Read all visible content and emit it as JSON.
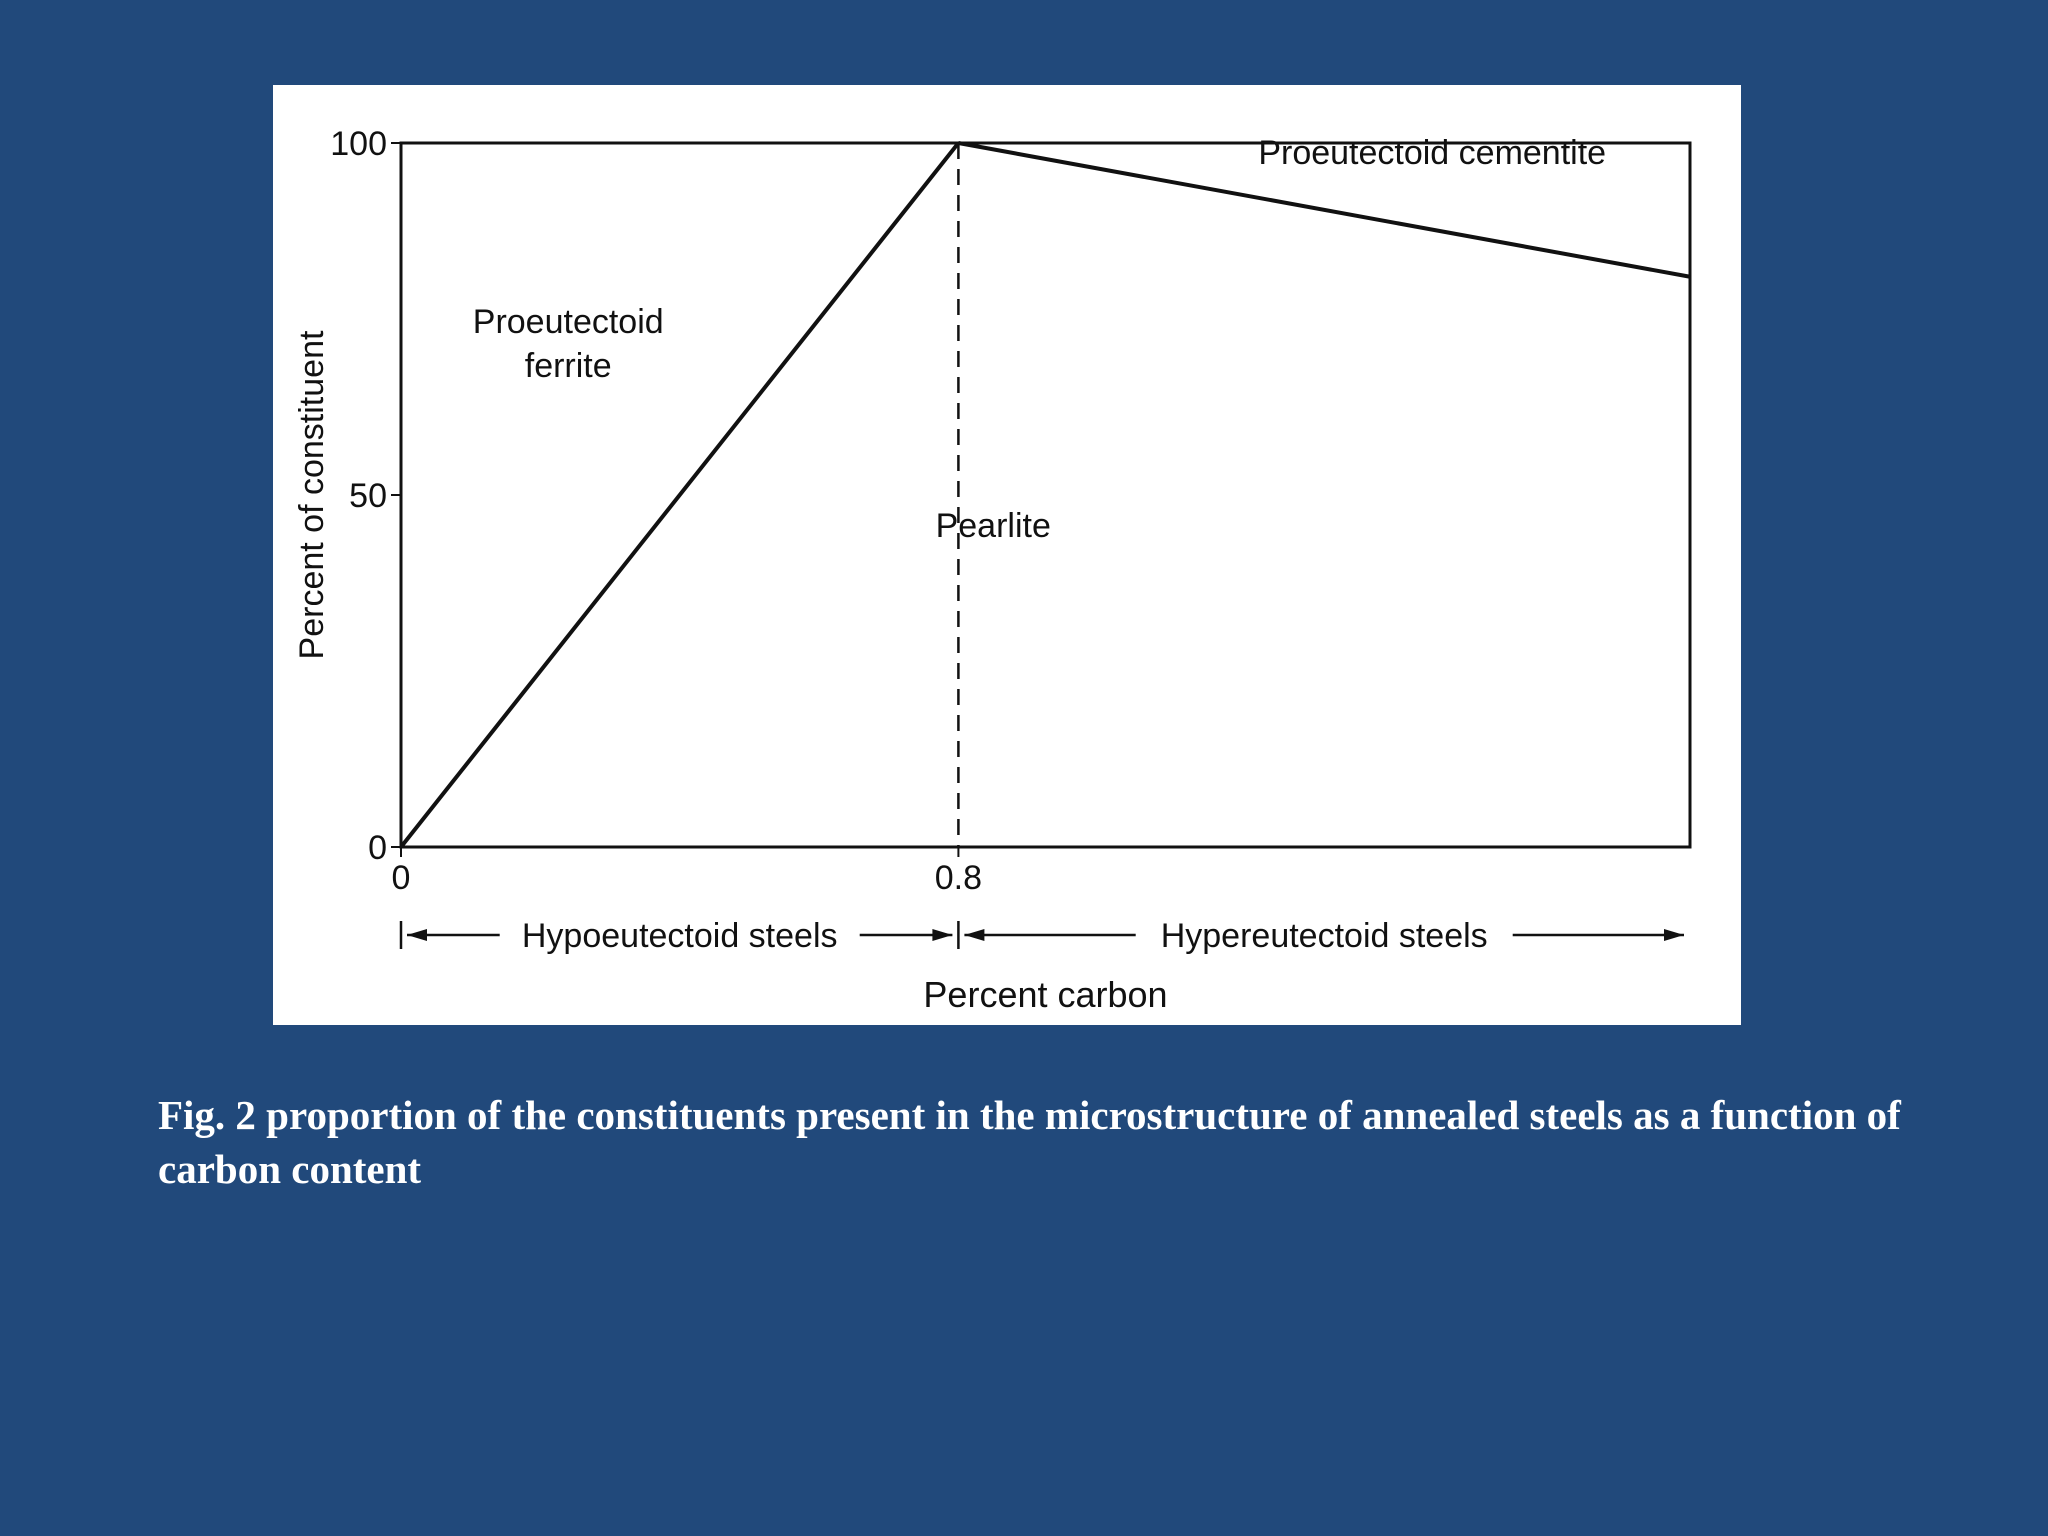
{
  "slide": {
    "background_color": "#21497b",
    "caption": "Fig. 2 proportion of the constituents present in the microstructure of annealed steels as a function of carbon content"
  },
  "chart_data": {
    "type": "line",
    "title": "",
    "xlabel": "Percent carbon",
    "ylabel": "Percent of constituent",
    "xlim": [
      0,
      1.85
    ],
    "ylim": [
      0,
      100
    ],
    "x_ticks": [
      {
        "value": 0,
        "label": "0"
      },
      {
        "value": 0.8,
        "label": "0.8"
      }
    ],
    "y_ticks": [
      {
        "value": 0,
        "label": "0"
      },
      {
        "value": 50,
        "label": "50"
      },
      {
        "value": 100,
        "label": "100"
      }
    ],
    "series": [
      {
        "values": [
          {
            "x": 0,
            "y": 0
          },
          {
            "x": 0.8,
            "y": 100
          }
        ]
      },
      {
        "values": [
          {
            "x": 0.8,
            "y": 100
          },
          {
            "x": 1.85,
            "y": 81
          }
        ]
      }
    ],
    "eutectoid_line": {
      "x": 0.8,
      "style": "dashed"
    },
    "region_labels": [
      {
        "text": "Proeutectoid\nferrite",
        "x": 0.24,
        "y": 73
      },
      {
        "text": "Pearlite",
        "x": 0.85,
        "y": 44
      },
      {
        "text": "Proeutectoid cementite",
        "x": 1.48,
        "y": 97
      }
    ],
    "ranges": [
      {
        "label": "Hypoeutectoid steels",
        "from": 0,
        "to": 0.8
      },
      {
        "label": "Hypereutectoid steels",
        "from": 0.8,
        "to": 1.85
      }
    ],
    "line_color": "#111111",
    "grid": false,
    "legend": "none"
  }
}
